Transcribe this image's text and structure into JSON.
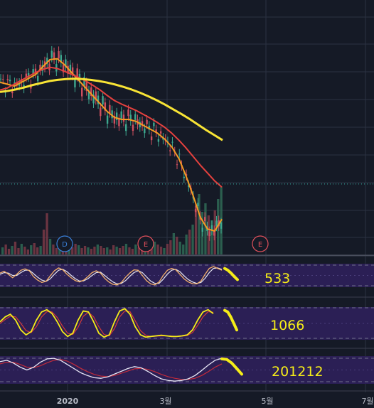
{
  "chart_data": {
    "type": "line",
    "main": {
      "series": [
        {
          "color": "#f59a23",
          "values": [
            104,
            103.5,
            103,
            104,
            105,
            106,
            108,
            109.8,
            110,
            108.5,
            106.5,
            104.5,
            102.5,
            100.5,
            98.5,
            96.5,
            95,
            94.5,
            94.5,
            94,
            93,
            92,
            91,
            89.5,
            87.5,
            84.5,
            80,
            75,
            69.5,
            66.5,
            66,
            69
          ]
        },
        {
          "color": "#e5413e",
          "values": [
            102,
            102.5,
            103.5,
            104.5,
            105.5,
            106.5,
            107.3,
            107.8,
            107.5,
            106.8,
            106,
            105.2,
            104.3,
            103.2,
            102,
            100.6,
            99.3,
            98.4,
            97.6,
            96.8,
            95.8,
            94.8,
            93.7,
            92.5,
            91,
            89.2,
            87.2,
            85,
            82.8,
            80.8,
            78.8,
            77.2
          ]
        },
        {
          "color": "#f8e435",
          "values": [
            101.5,
            101.8,
            102.2,
            102.7,
            103.3,
            103.8,
            104.3,
            104.6,
            104.8,
            104.9,
            104.8,
            104.6,
            104.3,
            103.9,
            103.4,
            102.8,
            102.1,
            101.3,
            100.4,
            99.4,
            98.3,
            97.1,
            95.9,
            94.6,
            93.2,
            91.8,
            90.5,
            89.2
          ]
        }
      ],
      "price_line": 78,
      "volume": [
        10,
        14,
        8,
        12,
        18,
        9,
        15,
        11,
        7,
        13,
        16,
        10,
        12,
        35,
        58,
        22,
        14,
        9,
        18,
        12,
        8,
        11,
        10,
        15,
        13,
        9,
        12,
        10,
        8,
        11,
        14,
        12,
        9,
        10,
        7,
        13,
        11,
        9,
        12,
        15,
        10,
        8,
        14,
        11,
        13,
        10,
        12,
        16,
        18,
        14,
        11,
        9,
        15,
        20,
        30,
        25,
        18,
        14,
        28,
        35,
        42,
        68,
        85,
        60,
        72,
        55,
        48,
        62,
        78,
        95
      ]
    },
    "events": [
      {
        "letter": "D",
        "color": "#3a7fd8"
      },
      {
        "letter": "E",
        "color": "#e0505b"
      },
      {
        "letter": "E",
        "color": "#e0505b"
      }
    ],
    "oscillators": [
      {
        "label": "533",
        "color": "#f5ec18",
        "k": [
          60,
          68,
          55,
          40,
          55,
          72,
          78,
          70,
          45,
          30,
          20,
          25,
          48,
          70,
          82,
          74,
          55,
          40,
          28,
          22,
          30,
          45,
          62,
          70,
          60,
          38,
          22,
          12,
          10,
          20,
          42,
          60,
          74,
          72,
          50,
          28,
          14,
          10,
          22,
          50,
          72,
          80,
          74,
          55,
          35,
          22,
          15,
          14,
          26,
          55,
          80,
          88,
          80,
          72
        ],
        "d": [
          55,
          62,
          60,
          50,
          50,
          62,
          72,
          72,
          58,
          42,
          30,
          25,
          35,
          55,
          72,
          76,
          66,
          50,
          36,
          26,
          27,
          36,
          50,
          62,
          64,
          50,
          35,
          22,
          14,
          16,
          28,
          46,
          62,
          70,
          62,
          44,
          26,
          16,
          16,
          34,
          56,
          72,
          76,
          66,
          48,
          32,
          22,
          16,
          20,
          38,
          62,
          80,
          82,
          76
        ],
        "forecast": [
          80,
          72,
          60,
          45,
          32
        ]
      },
      {
        "label": "1066",
        "color": "#f5ec18",
        "k": [
          55,
          70,
          78,
          60,
          30,
          15,
          25,
          60,
          85,
          92,
          80,
          55,
          25,
          10,
          20,
          60,
          88,
          85,
          55,
          20,
          8,
          15,
          55,
          88,
          95,
          78,
          40,
          15,
          8,
          10,
          12,
          14,
          12,
          10,
          10,
          12,
          15,
          30,
          60,
          85,
          92,
          80
        ],
        "d": [
          50,
          62,
          72,
          70,
          50,
          28,
          22,
          40,
          70,
          86,
          85,
          68,
          42,
          20,
          16,
          38,
          72,
          84,
          70,
          40,
          16,
          12,
          34,
          70,
          88,
          86,
          58,
          28,
          14,
          10,
          11,
          12,
          12,
          11,
          10,
          11,
          13,
          22,
          44,
          70,
          86,
          84
        ],
        "forecast": [
          90,
          85,
          70,
          50,
          30
        ]
      },
      {
        "label": "201212",
        "color": "#f5ec18",
        "k": [
          80,
          85,
          75,
          60,
          50,
          60,
          78,
          90,
          92,
          85,
          70,
          55,
          40,
          30,
          22,
          20,
          25,
          35,
          45,
          55,
          62,
          58,
          45,
          30,
          18,
          12,
          10,
          12,
          18,
          30,
          48,
          68,
          85,
          92
        ],
        "d": [
          72,
          78,
          78,
          70,
          60,
          58,
          65,
          76,
          85,
          88,
          82,
          70,
          56,
          44,
          34,
          28,
          26,
          30,
          38,
          46,
          54,
          56,
          52,
          44,
          34,
          26,
          20,
          16,
          16,
          20,
          30,
          44,
          60,
          72
        ],
        "forecast": [
          90,
          88,
          75,
          55,
          35
        ]
      }
    ],
    "x_ticks": [
      "2020",
      "3월",
      "5월",
      "7월"
    ]
  }
}
